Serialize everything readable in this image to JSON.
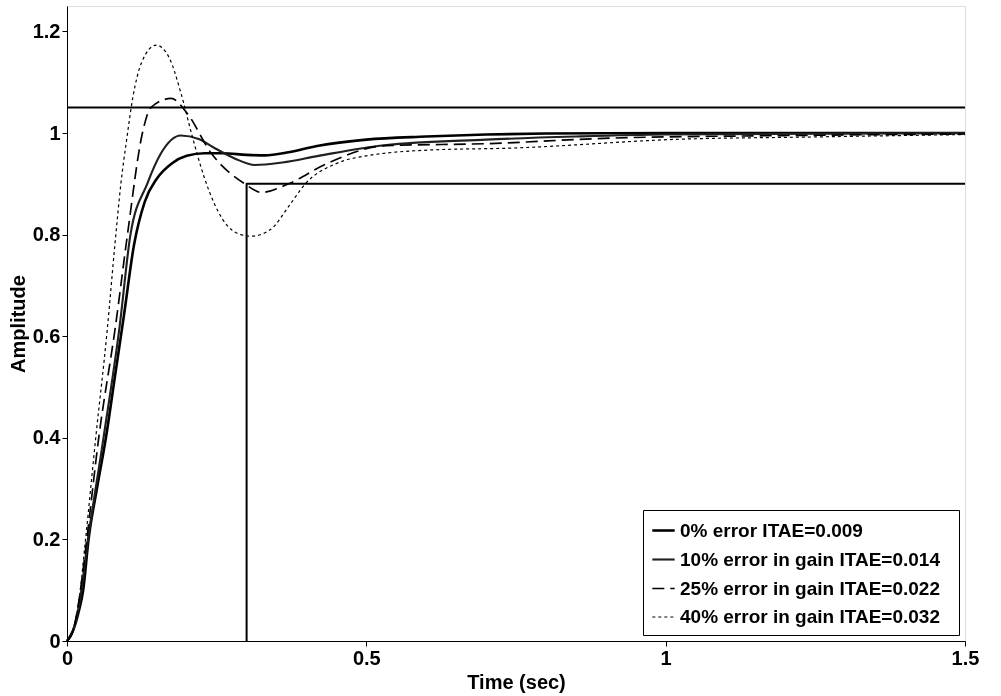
{
  "chart_data": {
    "type": "line",
    "xlabel": "Time (sec)",
    "ylabel": "Amplitude",
    "xlim": [
      0,
      1.5
    ],
    "ylim": [
      0,
      1.25
    ],
    "xticks": [
      0,
      0.5,
      1,
      1.5
    ],
    "yticks": [
      0,
      0.2,
      0.4,
      0.6,
      0.8,
      1,
      1.2
    ],
    "grid": false,
    "legend": "bottom right",
    "ref_lines": [
      {
        "axis": "y",
        "value": 1.05,
        "color": "#000000",
        "line_style": "solid"
      }
    ],
    "series": [
      {
        "name": "0% error      ITAE=0.009",
        "color": "#000000",
        "line_style": "solid",
        "x": [
          0,
          0.01,
          0.02,
          0.027,
          0.036,
          0.05,
          0.065,
          0.08,
          0.095,
          0.112,
          0.13,
          0.15,
          0.175,
          0.2,
          0.23,
          0.26,
          0.3,
          0.33,
          0.37,
          0.42,
          0.5,
          0.6,
          0.7,
          0.8,
          1.0,
          1.2,
          1.5
        ],
        "values": [
          0,
          0.02,
          0.06,
          0.1,
          0.2,
          0.3,
          0.4,
          0.52,
          0.64,
          0.78,
          0.865,
          0.91,
          0.94,
          0.955,
          0.96,
          0.96,
          0.957,
          0.956,
          0.962,
          0.975,
          0.987,
          0.993,
          0.997,
          0.999,
          1.0,
          1.0,
          1.0
        ]
      },
      {
        "name": "10% error in gain   ITAE=0.014",
        "color": "#202020",
        "line_style": "solid",
        "x": [
          0,
          0.01,
          0.02,
          0.035,
          0.061,
          0.088,
          0.106,
          0.134,
          0.157,
          0.19,
          0.22,
          0.247,
          0.28,
          0.314,
          0.36,
          0.42,
          0.53,
          0.7,
          0.85,
          1.0,
          1.5
        ],
        "values": [
          0,
          0.02,
          0.07,
          0.2,
          0.4,
          0.62,
          0.8,
          0.9,
          0.96,
          0.995,
          0.988,
          0.97,
          0.95,
          0.937,
          0.942,
          0.955,
          0.976,
          0.987,
          0.993,
          0.997,
          1.0
        ]
      },
      {
        "name": "25% error in gain   ITAE=0.022",
        "color": "#000000",
        "line_style": "dashed",
        "x": [
          0,
          0.01,
          0.02,
          0.033,
          0.053,
          0.081,
          0.101,
          0.126,
          0.14,
          0.174,
          0.2,
          0.241,
          0.297,
          0.325,
          0.37,
          0.431,
          0.532,
          0.7,
          0.91,
          1.2,
          1.5
        ],
        "values": [
          0,
          0.02,
          0.08,
          0.2,
          0.4,
          0.62,
          0.8,
          1.0,
          1.05,
          1.068,
          1.04,
          0.96,
          0.9,
          0.883,
          0.9,
          0.938,
          0.975,
          0.979,
          0.99,
          0.995,
          0.998
        ]
      },
      {
        "name": "40% error in gain   ITAE=0.032",
        "color": "#000000",
        "line_style": "dotted",
        "x": [
          0,
          0.01,
          0.02,
          0.031,
          0.048,
          0.067,
          0.08,
          0.09,
          0.1,
          0.11,
          0.125,
          0.149,
          0.17,
          0.19,
          0.21,
          0.23,
          0.26,
          0.29,
          0.308,
          0.34,
          0.37,
          0.398,
          0.45,
          0.5,
          0.616,
          0.734,
          1.03,
          1.235,
          1.5
        ],
        "values": [
          0,
          0.02,
          0.08,
          0.2,
          0.4,
          0.61,
          0.78,
          0.9,
          0.99,
          1.07,
          1.14,
          1.173,
          1.15,
          1.08,
          0.99,
          0.91,
          0.83,
          0.8,
          0.797,
          0.81,
          0.855,
          0.9,
          0.94,
          0.955,
          0.967,
          0.97,
          0.988,
          0.992,
          0.997
        ]
      },
      {
        "color": "#000000",
        "line_style": "solid",
        "x": [
          0.3,
          0.3,
          1.5
        ],
        "values": [
          0,
          0.9,
          0.9
        ]
      }
    ]
  }
}
